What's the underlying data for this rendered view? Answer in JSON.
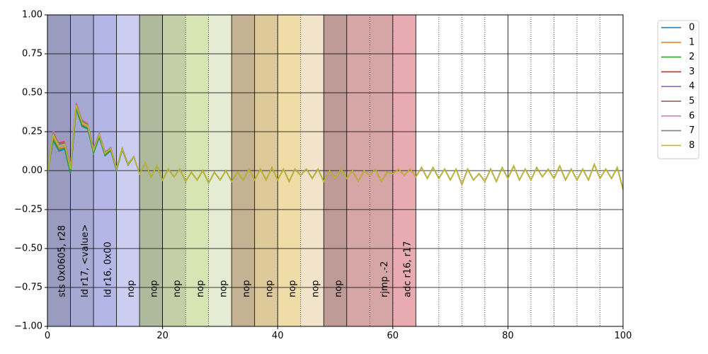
{
  "chart_data": {
    "type": "line",
    "xlim": [
      0,
      100
    ],
    "ylim": [
      -1.0,
      1.0
    ],
    "x_ticks": [
      0,
      20,
      40,
      60,
      80,
      100
    ],
    "y_ticks": [
      1.0,
      0.75,
      0.5,
      0.25,
      0.0,
      -0.25,
      -0.5,
      -0.75,
      -1.0
    ],
    "x_tick_labels": [
      "0",
      "20",
      "40",
      "60",
      "80",
      "100"
    ],
    "y_tick_labels": [
      "1.00",
      "0.75",
      "0.50",
      "0.25",
      "0.00",
      "−0.25",
      "−0.50",
      "−0.75",
      "−1.00"
    ],
    "grid": true,
    "legend_placement": "outside top-right",
    "x": [
      0,
      1,
      2,
      3,
      4,
      5,
      6,
      7,
      8,
      9,
      10,
      11,
      12,
      13,
      14,
      15,
      16,
      17,
      18,
      19,
      20,
      21,
      22,
      23,
      24,
      25,
      26,
      27,
      28,
      29,
      30,
      31,
      32,
      33,
      34,
      35,
      36,
      37,
      38,
      39,
      40,
      41,
      42,
      43,
      44,
      45,
      46,
      47,
      48,
      49,
      50,
      51,
      52,
      53,
      54,
      55,
      56,
      57,
      58,
      59,
      60,
      61,
      62,
      63,
      64,
      65,
      66,
      67,
      68,
      69,
      70,
      71,
      72,
      73,
      74,
      75,
      76,
      77,
      78,
      79,
      80,
      81,
      82,
      83,
      84,
      85,
      86,
      87,
      88,
      89,
      90,
      91,
      92,
      93,
      94,
      95,
      96,
      97,
      98,
      99,
      100
    ],
    "base_series": [
      -0.02,
      0.23,
      0.16,
      0.17,
      0.01,
      0.42,
      0.31,
      0.29,
      0.13,
      0.23,
      0.11,
      0.14,
      0.01,
      0.14,
      0.04,
      0.09,
      -0.02,
      0.05,
      -0.04,
      0.03,
      -0.06,
      0.01,
      -0.04,
      0.01,
      -0.07,
      -0.01,
      -0.06,
      0.0,
      -0.08,
      -0.01,
      -0.06,
      0.0,
      -0.07,
      -0.01,
      -0.06,
      0.01,
      -0.06,
      0.01,
      -0.06,
      0.02,
      -0.06,
      0.01,
      -0.07,
      0.01,
      -0.03,
      0.01,
      -0.05,
      0.01,
      -0.07,
      0.0,
      -0.05,
      0.01,
      -0.05,
      0.0,
      -0.07,
      0.0,
      -0.03,
      0.01,
      -0.07,
      -0.01,
      -0.02,
      0.01,
      -0.03,
      0.01,
      -0.04,
      0.02,
      -0.05,
      0.02,
      -0.05,
      0.01,
      -0.06,
      0.01,
      -0.09,
      0.01,
      -0.06,
      -0.02,
      -0.07,
      0.01,
      -0.07,
      0.02,
      -0.05,
      0.03,
      -0.06,
      0.01,
      -0.06,
      0.02,
      -0.04,
      0.01,
      -0.05,
      0.03,
      -0.06,
      0.01,
      -0.06,
      0.01,
      -0.06,
      0.04,
      -0.05,
      0.01,
      -0.05,
      0.02,
      -0.12
    ],
    "series": [
      {
        "name": "0",
        "color": "#1f77b4",
        "offset": -0.02
      },
      {
        "name": "1",
        "color": "#ff7f0e",
        "offset": -0.01
      },
      {
        "name": "2",
        "color": "#2ca02c",
        "offset": -0.015
      },
      {
        "name": "3",
        "color": "#d62728",
        "offset": 0.01
      },
      {
        "name": "4",
        "color": "#9467bd",
        "offset": 0.0
      },
      {
        "name": "5",
        "color": "#8c564b",
        "offset": 0.005
      },
      {
        "name": "6",
        "color": "#e377c2",
        "offset": 0.015
      },
      {
        "name": "7",
        "color": "#7f7f7f",
        "offset": 0.008
      },
      {
        "name": "8",
        "color": "#bcbd22",
        "offset": 0.0
      }
    ],
    "bands": [
      {
        "x0": 0,
        "x1": 4,
        "color": "#9a9cbf"
      },
      {
        "x0": 4,
        "x1": 8,
        "color": "#a6a9d1"
      },
      {
        "x0": 8,
        "x1": 12,
        "color": "#b3b6e6"
      },
      {
        "x0": 12,
        "x1": 16,
        "color": "#cbcef0"
      },
      {
        "x0": 16,
        "x1": 20,
        "color": "#afba9c"
      },
      {
        "x0": 20,
        "x1": 24,
        "color": "#c4cfa8"
      },
      {
        "x0": 24,
        "x1": 28,
        "color": "#d7e4b3"
      },
      {
        "x0": 28,
        "x1": 32,
        "color": "#e6ebd3"
      },
      {
        "x0": 32,
        "x1": 36,
        "color": "#c4b293"
      },
      {
        "x0": 36,
        "x1": 40,
        "color": "#ddc99a"
      },
      {
        "x0": 40,
        "x1": 44,
        "color": "#f0dca6"
      },
      {
        "x0": 44,
        "x1": 48,
        "color": "#f2e4ca"
      },
      {
        "x0": 48,
        "x1": 52,
        "color": "#bf9b98"
      },
      {
        "x0": 52,
        "x1": 56,
        "color": "#d6a5a5"
      },
      {
        "x0": 56,
        "x1": 60,
        "color": "#d6a5a5"
      },
      {
        "x0": 60,
        "x1": 64,
        "color": "#e8abb2"
      }
    ],
    "instruction_boundaries_solid": [
      4,
      8,
      12,
      16,
      20,
      32,
      36,
      48,
      52,
      64
    ],
    "instruction_boundaries_dotted": [
      24,
      28,
      40,
      44,
      56,
      60,
      68,
      72,
      76,
      84,
      88,
      92,
      96
    ],
    "instructions": [
      {
        "x": 2.6,
        "text": "sts 0x0605, r28"
      },
      {
        "x": 6.6,
        "text": "ld r17, <value>"
      },
      {
        "x": 10.6,
        "text": "ld r16, 0x00"
      },
      {
        "x": 14.6,
        "text": "nop"
      },
      {
        "x": 18.6,
        "text": "nop"
      },
      {
        "x": 22.6,
        "text": "nop"
      },
      {
        "x": 26.6,
        "text": "nop"
      },
      {
        "x": 30.6,
        "text": "nop"
      },
      {
        "x": 34.6,
        "text": "nop"
      },
      {
        "x": 38.6,
        "text": "nop"
      },
      {
        "x": 42.6,
        "text": "nop"
      },
      {
        "x": 46.6,
        "text": "nop"
      },
      {
        "x": 50.6,
        "text": "nop"
      },
      {
        "x": 58.6,
        "text": "rjmp .-2"
      },
      {
        "x": 62.6,
        "text": "adc r16, r17"
      }
    ]
  }
}
